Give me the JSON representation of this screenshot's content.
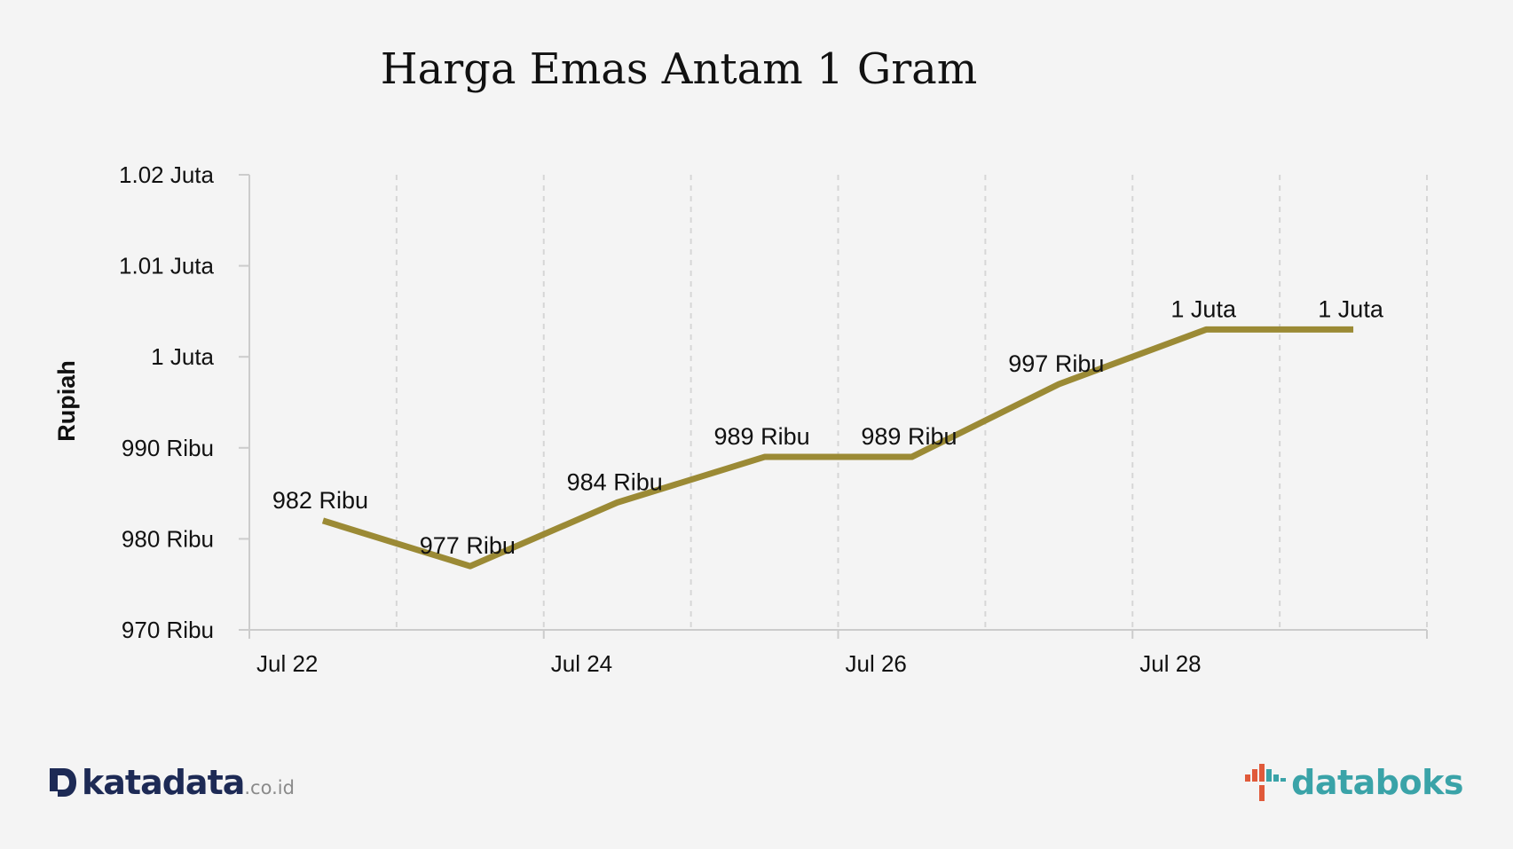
{
  "title": "Harga Emas Antam 1 Gram",
  "colors": {
    "line": "#9b8a35",
    "axis": "#cccccc",
    "grid": "#d6d6d6",
    "text": "#111111",
    "katadata": "#1d2a55",
    "databoks": "#3aa3a8",
    "databoks_accent": "#e05a3a"
  },
  "chart_data": {
    "type": "line",
    "title": "Harga Emas Antam 1 Gram",
    "xlabel": "",
    "ylabel": "Rupiah",
    "x": [
      "2023-07-22",
      "2023-07-23",
      "2023-07-24",
      "2023-07-25",
      "2023-07-26",
      "2023-07-27",
      "2023-07-28",
      "2023-07-29"
    ],
    "x_tick_labels": [
      "Jul 22",
      "Jul 24",
      "Jul 26",
      "Jul 28"
    ],
    "x_tick_dates": [
      "2023-07-22",
      "2023-07-24",
      "2023-07-26",
      "2023-07-28"
    ],
    "series": [
      {
        "values": [
          982000,
          977000,
          984000,
          989000,
          989000,
          997000,
          1003000,
          1003000
        ],
        "labels": [
          "982 Ribu",
          "977 Ribu",
          "984 Ribu",
          "989 Ribu",
          "989 Ribu",
          "997 Ribu",
          "1 Juta",
          "1 Juta"
        ]
      }
    ],
    "y_ticks": [
      970000,
      980000,
      990000,
      1000000,
      1010000,
      1020000
    ],
    "y_tick_labels": [
      "970 Ribu",
      "980 Ribu",
      "990 Ribu",
      "1 Juta",
      "1.01 Juta",
      "1.02 Juta"
    ],
    "ylim": [
      970000,
      1020000
    ],
    "grid": "vertical-dashed",
    "legend": "none"
  },
  "logos": {
    "left": {
      "name": "katadata",
      "suffix": ".co.id",
      "icon": "katadata-logo-icon"
    },
    "right": {
      "name": "databoks",
      "icon": "databoks-logo-icon"
    }
  }
}
